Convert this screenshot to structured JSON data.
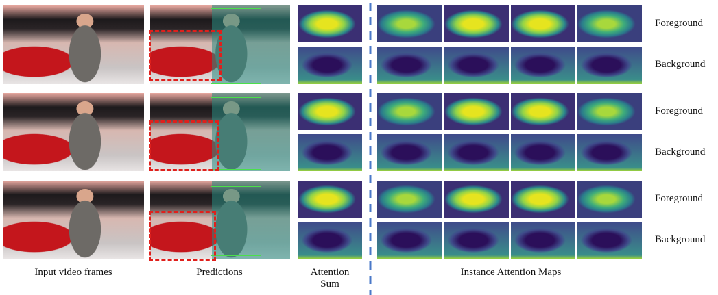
{
  "row_labels": [
    [
      "Foreground",
      "Background"
    ],
    [
      "Foreground",
      "Background"
    ],
    [
      "Foreground",
      "Background"
    ]
  ],
  "captions": {
    "input": "Input video frames",
    "predictions": "Predictions",
    "attention_sum": "Attention Sum",
    "instance_maps": "Instance Attention Maps"
  }
}
